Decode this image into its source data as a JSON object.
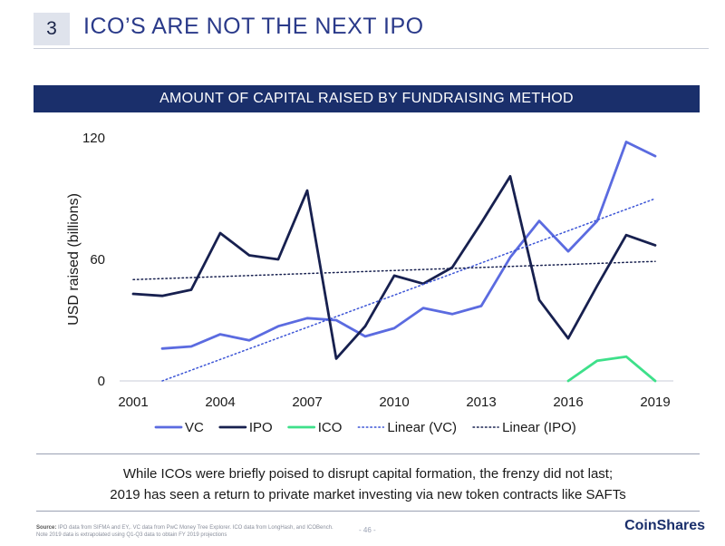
{
  "slide": {
    "number": "3",
    "title": "ICO’S ARE NOT THE NEXT IPO"
  },
  "banner": "AMOUNT OF CAPITAL RAISED BY FUNDRAISING METHOD",
  "caption": {
    "line1": "While ICOs were briefly poised to disrupt capital formation, the frenzy did not last;",
    "line2": "2019 has seen a return to private market investing via new token contracts like SAFTs"
  },
  "footer": {
    "source_label": "Source:",
    "source_text": "IPO data from SIFMA and EY,. VC data from PwC Money Tree Explorer. ICO data from LongHash, and ICOBench. Note 2019 data is extrapolated using Q1-Q3 data to obtain FY 2019 projections",
    "page": "- 46 -",
    "logo": "CoinShares"
  },
  "colors": {
    "vc": "#5b6be0",
    "ipo": "#17204f",
    "ico": "#3ee08a",
    "banner": "#1a2f6b",
    "title": "#2a3a8a"
  },
  "chart_data": {
    "type": "line",
    "ylabel": "USD raised (billions)",
    "xlim": [
      2001,
      2019
    ],
    "ylim": [
      0,
      120
    ],
    "x_ticks": [
      2001,
      2004,
      2007,
      2010,
      2013,
      2016,
      2019
    ],
    "y_ticks": [
      0,
      60,
      120
    ],
    "grid": false,
    "legend_position": "bottom",
    "series": [
      {
        "name": "VC",
        "style": "solid",
        "color": "#5b6be0",
        "x": [
          2002,
          2003,
          2004,
          2005,
          2006,
          2007,
          2008,
          2009,
          2010,
          2011,
          2012,
          2013,
          2014,
          2015,
          2016,
          2017,
          2018,
          2019
        ],
        "y": [
          16,
          17,
          23,
          20,
          27,
          31,
          30,
          22,
          26,
          36,
          33,
          37,
          61,
          79,
          64,
          79,
          118,
          111
        ]
      },
      {
        "name": "IPO",
        "style": "solid",
        "color": "#17204f",
        "x": [
          2001,
          2002,
          2003,
          2004,
          2005,
          2006,
          2007,
          2008,
          2009,
          2010,
          2011,
          2012,
          2013,
          2014,
          2015,
          2016,
          2017,
          2018,
          2019
        ],
        "y": [
          43,
          42,
          45,
          73,
          62,
          60,
          94,
          11,
          27,
          52,
          48,
          56,
          78,
          101,
          40,
          21,
          47,
          72,
          67
        ]
      },
      {
        "name": "ICO",
        "style": "solid",
        "color": "#3ee08a",
        "x": [
          2016,
          2017,
          2018,
          2019
        ],
        "y": [
          0,
          10,
          12,
          0
        ]
      },
      {
        "name": "Linear (VC)",
        "style": "dotted",
        "color": "#3b54d6",
        "x": [
          2002,
          2019
        ],
        "y": [
          0,
          90
        ]
      },
      {
        "name": "Linear (IPO)",
        "style": "dotted",
        "color": "#17204f",
        "x": [
          2001,
          2019
        ],
        "y": [
          50,
          59
        ]
      }
    ]
  }
}
